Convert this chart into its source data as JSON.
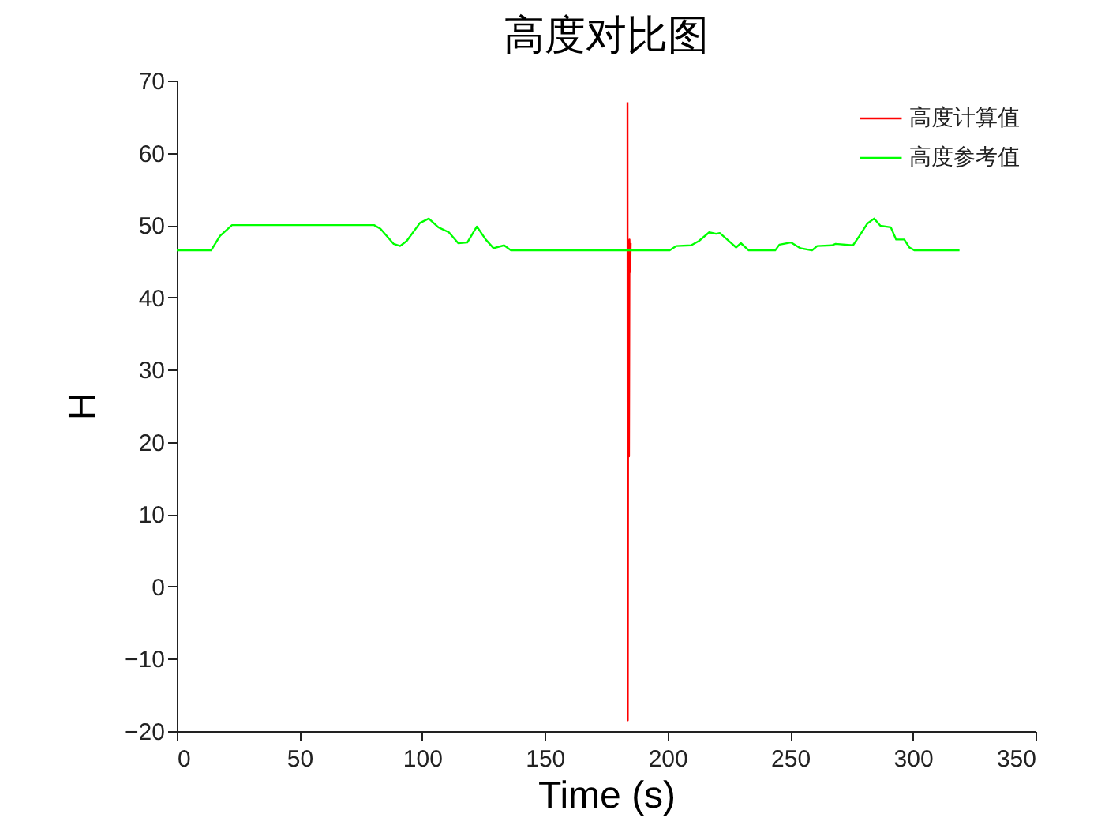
{
  "chart_data": {
    "type": "line",
    "title": "高度对比图",
    "xlabel": "Time (s)",
    "ylabel": "H",
    "xlim": [
      0,
      350
    ],
    "xticks": [
      0,
      50,
      100,
      150,
      200,
      250,
      300,
      350
    ],
    "ylim": [
      -20,
      70
    ],
    "yticks": [
      -20,
      -10,
      0,
      10,
      20,
      30,
      40,
      50,
      60,
      70
    ],
    "grid": false,
    "legend": "top right",
    "marker": "none",
    "line_style": "solid",
    "series": [
      {
        "name": "高度计算值",
        "color": "#ff0000",
        "x": [
          183.7,
          183.8,
          184,
          184.3,
          184.5,
          184.8,
          185
        ],
        "values": [
          67,
          -18.5,
          45,
          18,
          48,
          43.5,
          47.5
        ]
      },
      {
        "name": "高度参考值",
        "color": "#00ff00",
        "x": [
          0,
          14,
          17.6,
          22.5,
          80.4,
          83,
          88.4,
          91,
          93.7,
          99.1,
          102.7,
          106.6,
          110.9,
          114.7,
          118.4,
          122.3,
          125.9,
          129.1,
          133.4,
          136.2,
          200.8,
          203.5,
          209.6,
          212.8,
          217,
          219.8,
          221.3,
          225.7,
          228,
          229.9,
          233.1,
          243.9,
          245.6,
          250.3,
          254.2,
          258.9,
          261,
          267,
          268.5,
          275.6,
          278.2,
          281.4,
          284.2,
          286.8,
          291,
          293.2,
          296.5,
          298.6,
          300.7,
          319
        ],
        "values": [
          46.5,
          46.5,
          48.5,
          50,
          50,
          49.5,
          47.4,
          47.1,
          47.8,
          50.3,
          50.9,
          49.7,
          49,
          47.5,
          47.6,
          49.8,
          48,
          46.8,
          47.2,
          46.5,
          46.5,
          47.1,
          47.2,
          47.8,
          49,
          48.8,
          48.9,
          47.6,
          46.9,
          47.5,
          46.5,
          46.5,
          47.3,
          47.6,
          46.8,
          46.5,
          47.1,
          47.2,
          47.4,
          47.2,
          48.5,
          50.2,
          50.9,
          49.9,
          49.7,
          48,
          48,
          46.9,
          46.5,
          46.5
        ]
      }
    ]
  }
}
